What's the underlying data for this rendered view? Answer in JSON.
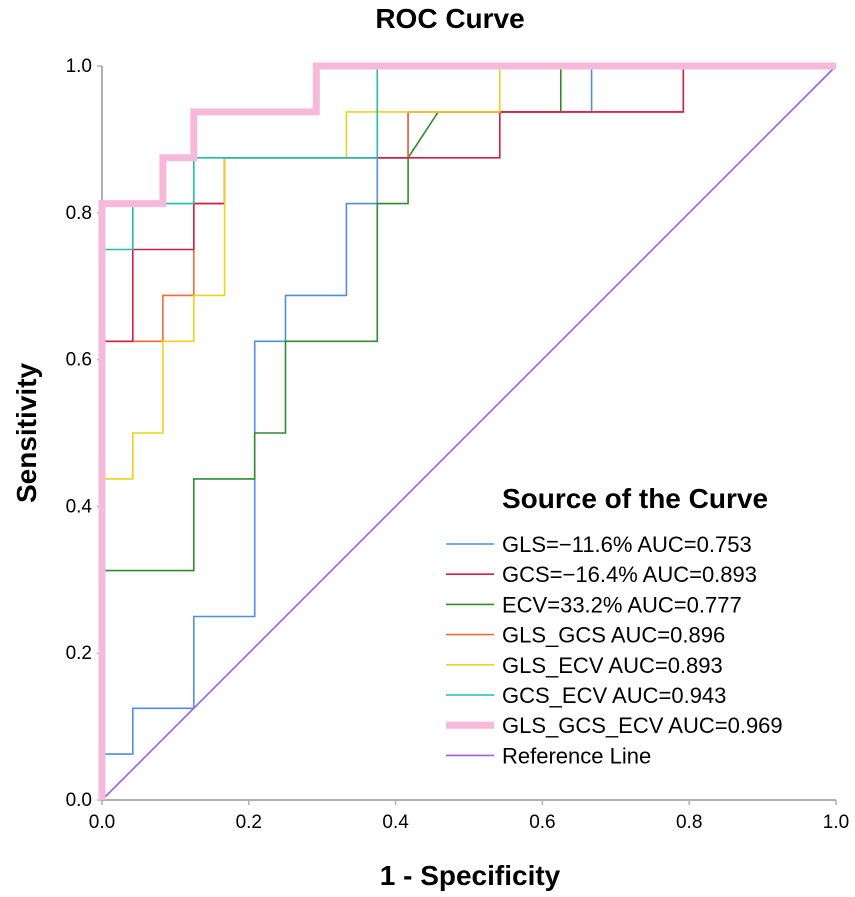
{
  "chart_data": {
    "type": "line",
    "title": "ROC Curve",
    "xlabel": "1 - Specificity",
    "ylabel": "Sensitivity",
    "xlim": [
      0,
      1
    ],
    "ylim": [
      0,
      1
    ],
    "x_ticks": [
      "0.0",
      "0.2",
      "0.4",
      "0.6",
      "0.8",
      "1.0"
    ],
    "y_ticks": [
      "0.0",
      "0.2",
      "0.4",
      "0.6",
      "0.8",
      "1.0"
    ],
    "grid": false,
    "legend_title": "Source of the Curve",
    "legend_position": "bottom-right",
    "series": [
      {
        "name": "GLS=−11.6% AUC=0.753",
        "color": "#4f8fde",
        "points": [
          [
            0,
            0
          ],
          [
            0,
            0.0625
          ],
          [
            0.042,
            0.0625
          ],
          [
            0.042,
            0.125
          ],
          [
            0.125,
            0.125
          ],
          [
            0.125,
            0.25
          ],
          [
            0.208,
            0.25
          ],
          [
            0.208,
            0.625
          ],
          [
            0.25,
            0.625
          ],
          [
            0.25,
            0.6875
          ],
          [
            0.333,
            0.6875
          ],
          [
            0.333,
            0.8125
          ],
          [
            0.375,
            0.8125
          ],
          [
            0.375,
            0.875
          ],
          [
            0.417,
            0.875
          ],
          [
            0.417,
            0.9375
          ],
          [
            0.667,
            0.9375
          ],
          [
            0.667,
            1
          ],
          [
            1,
            1
          ]
        ]
      },
      {
        "name": "GCS=−16.4% AUC=0.893",
        "color": "#d21f44",
        "points": [
          [
            0,
            0
          ],
          [
            0,
            0.625
          ],
          [
            0.042,
            0.625
          ],
          [
            0.042,
            0.75
          ],
          [
            0.125,
            0.75
          ],
          [
            0.125,
            0.8125
          ],
          [
            0.167,
            0.8125
          ],
          [
            0.167,
            0.875
          ],
          [
            0.542,
            0.875
          ],
          [
            0.542,
            0.9375
          ],
          [
            0.792,
            0.9375
          ],
          [
            0.792,
            1
          ],
          [
            1,
            1
          ]
        ]
      },
      {
        "name": "ECV=33.2% AUC=0.777",
        "color": "#2e8b2e",
        "points": [
          [
            0,
            0
          ],
          [
            0,
            0.3125
          ],
          [
            0.125,
            0.3125
          ],
          [
            0.125,
            0.4375
          ],
          [
            0.208,
            0.4375
          ],
          [
            0.208,
            0.5
          ],
          [
            0.25,
            0.5
          ],
          [
            0.25,
            0.625
          ],
          [
            0.375,
            0.625
          ],
          [
            0.375,
            0.8125
          ],
          [
            0.417,
            0.8125
          ],
          [
            0.417,
            0.875
          ],
          [
            0.458,
            0.9375
          ],
          [
            0.625,
            0.9375
          ],
          [
            0.625,
            1
          ],
          [
            1,
            1
          ]
        ]
      },
      {
        "name": "GLS_GCS AUC=0.896",
        "color": "#f26b35",
        "points": [
          [
            0,
            0
          ],
          [
            0,
            0.625
          ],
          [
            0.083,
            0.625
          ],
          [
            0.083,
            0.6875
          ],
          [
            0.125,
            0.6875
          ],
          [
            0.125,
            0.8125
          ],
          [
            0.167,
            0.8125
          ],
          [
            0.167,
            0.875
          ],
          [
            0.417,
            0.875
          ],
          [
            0.417,
            0.9375
          ],
          [
            0.792,
            0.9375
          ],
          [
            0.792,
            1
          ],
          [
            1,
            1
          ]
        ]
      },
      {
        "name": "GLS_ECV AUC=0.893",
        "color": "#ecd31f",
        "points": [
          [
            0,
            0
          ],
          [
            0,
            0.4375
          ],
          [
            0.042,
            0.4375
          ],
          [
            0.042,
            0.5
          ],
          [
            0.083,
            0.5
          ],
          [
            0.083,
            0.625
          ],
          [
            0.125,
            0.625
          ],
          [
            0.125,
            0.6875
          ],
          [
            0.167,
            0.6875
          ],
          [
            0.167,
            0.875
          ],
          [
            0.333,
            0.875
          ],
          [
            0.333,
            0.9375
          ],
          [
            0.542,
            0.9375
          ],
          [
            0.542,
            1
          ],
          [
            1,
            1
          ]
        ]
      },
      {
        "name": "GCS_ECV AUC=0.943",
        "color": "#1fbfb0",
        "points": [
          [
            0,
            0
          ],
          [
            0,
            0.75
          ],
          [
            0.042,
            0.75
          ],
          [
            0.042,
            0.8125
          ],
          [
            0.125,
            0.8125
          ],
          [
            0.125,
            0.875
          ],
          [
            0.375,
            0.875
          ],
          [
            0.375,
            1
          ],
          [
            1,
            1
          ]
        ]
      },
      {
        "name": "GLS_GCS_ECV AUC=0.969",
        "color": "#f7b9d9",
        "thick": true,
        "points": [
          [
            0,
            0
          ],
          [
            0,
            0.8125
          ],
          [
            0.083,
            0.8125
          ],
          [
            0.083,
            0.875
          ],
          [
            0.125,
            0.875
          ],
          [
            0.125,
            0.9375
          ],
          [
            0.292,
            0.9375
          ],
          [
            0.292,
            1
          ],
          [
            1,
            1
          ]
        ]
      },
      {
        "name": "Reference Line",
        "color": "#a15bea",
        "points": [
          [
            0,
            0
          ],
          [
            1,
            1
          ]
        ]
      }
    ]
  }
}
